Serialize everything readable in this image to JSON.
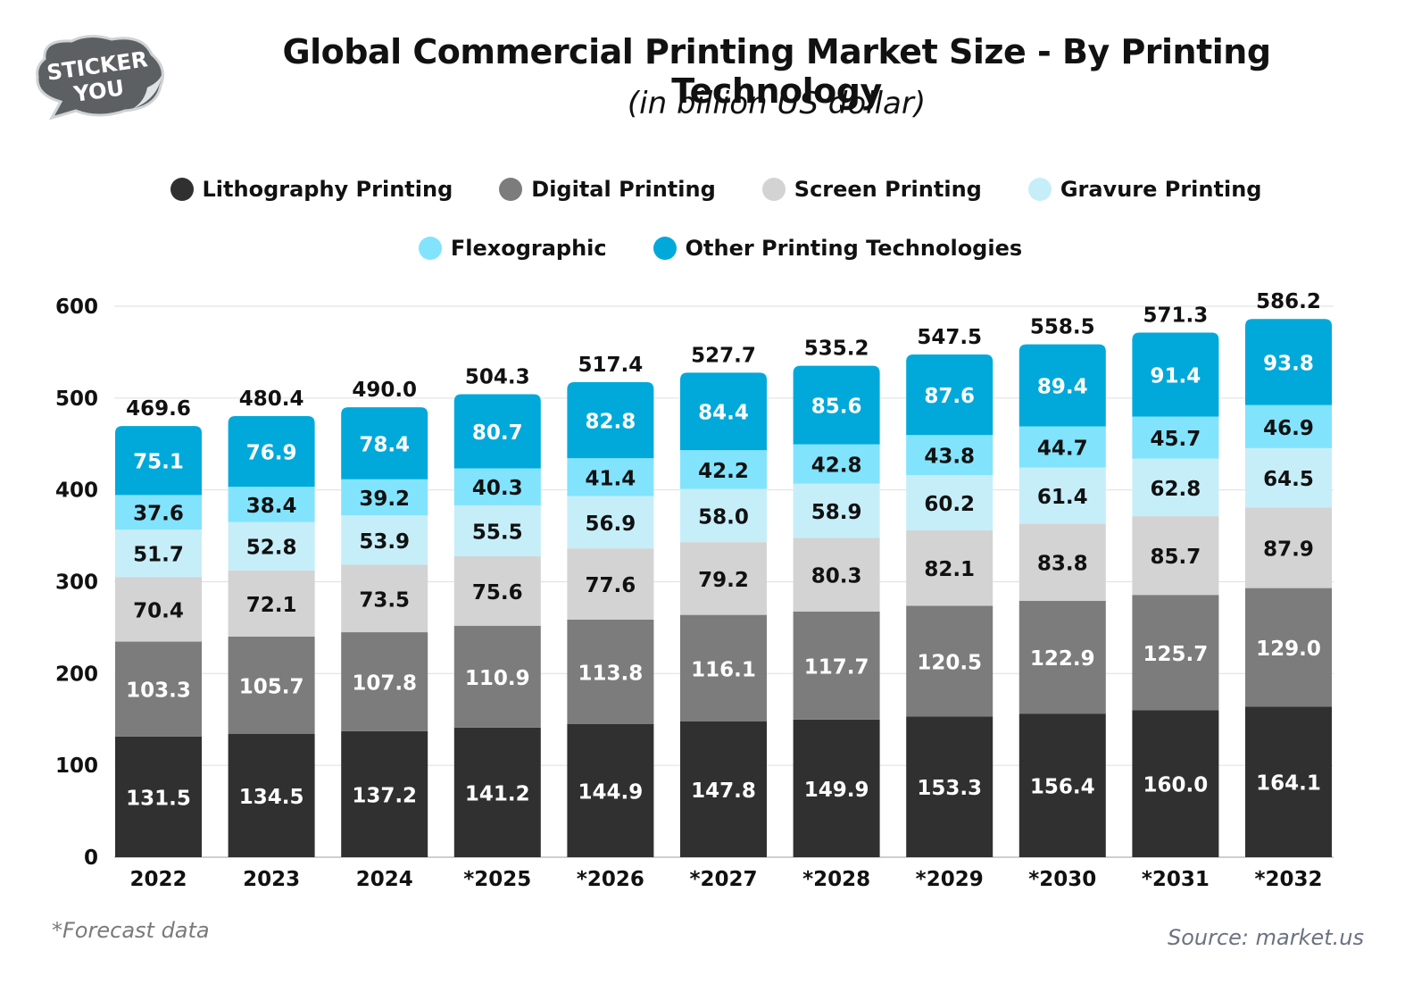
{
  "branding": {
    "logo_line1": "STICKER",
    "logo_line2": "YOU"
  },
  "header": {
    "title": "Global Commercial Printing Market Size - By Printing Technology",
    "subtitle": "(in billion US dollar)"
  },
  "footer": {
    "footnote": "*Forecast data",
    "source": "Source: market.us"
  },
  "chart_data": {
    "type": "bar",
    "stacked": true,
    "title": "Global Commercial Printing Market Size - By Printing Technology",
    "subtitle": "(in billion US dollar)",
    "xlabel": "",
    "ylabel": "",
    "ylim": [
      0,
      600
    ],
    "yticks": [
      0,
      100,
      200,
      300,
      400,
      500,
      600
    ],
    "grid": true,
    "legend_position": "top-center",
    "categories": [
      "2022",
      "2023",
      "2024",
      "*2025",
      "*2026",
      "*2027",
      "*2028",
      "*2029",
      "*2030",
      "*2031",
      "*2032"
    ],
    "series": [
      {
        "name": "Lithography Printing",
        "color": "#303030",
        "label_color": "#ffffff",
        "values": [
          131.5,
          134.5,
          137.2,
          141.2,
          144.9,
          147.8,
          149.9,
          153.3,
          156.4,
          160.0,
          164.1
        ]
      },
      {
        "name": "Digital Printing",
        "color": "#7c7c7c",
        "label_color": "#ffffff",
        "values": [
          103.3,
          105.7,
          107.8,
          110.9,
          113.8,
          116.1,
          117.7,
          120.5,
          122.9,
          125.7,
          129.0
        ]
      },
      {
        "name": "Screen Printing",
        "color": "#d3d3d3",
        "label_color": "#111111",
        "values": [
          70.4,
          72.1,
          73.5,
          75.6,
          77.6,
          79.2,
          80.3,
          82.1,
          83.8,
          85.7,
          87.9
        ]
      },
      {
        "name": "Gravure Printing",
        "color": "#c6eef9",
        "label_color": "#111111",
        "values": [
          51.7,
          52.8,
          53.9,
          55.5,
          56.9,
          58.0,
          58.9,
          60.2,
          61.4,
          62.8,
          64.5
        ]
      },
      {
        "name": "Flexographic",
        "color": "#82e3fd",
        "label_color": "#111111",
        "values": [
          37.6,
          38.4,
          39.2,
          40.3,
          41.4,
          42.2,
          42.8,
          43.8,
          44.7,
          45.7,
          46.9
        ]
      },
      {
        "name": "Other Printing Technologies",
        "color": "#00a9d9",
        "label_color": "#ffffff",
        "values": [
          75.1,
          76.9,
          78.4,
          80.7,
          82.8,
          84.4,
          85.6,
          87.6,
          89.4,
          91.4,
          93.8
        ]
      }
    ],
    "totals": [
      469.6,
      480.4,
      490.0,
      504.3,
      517.4,
      527.7,
      535.2,
      547.5,
      558.5,
      571.3,
      586.2
    ],
    "annotations": [
      "*Forecast data",
      "Source: market.us"
    ]
  }
}
